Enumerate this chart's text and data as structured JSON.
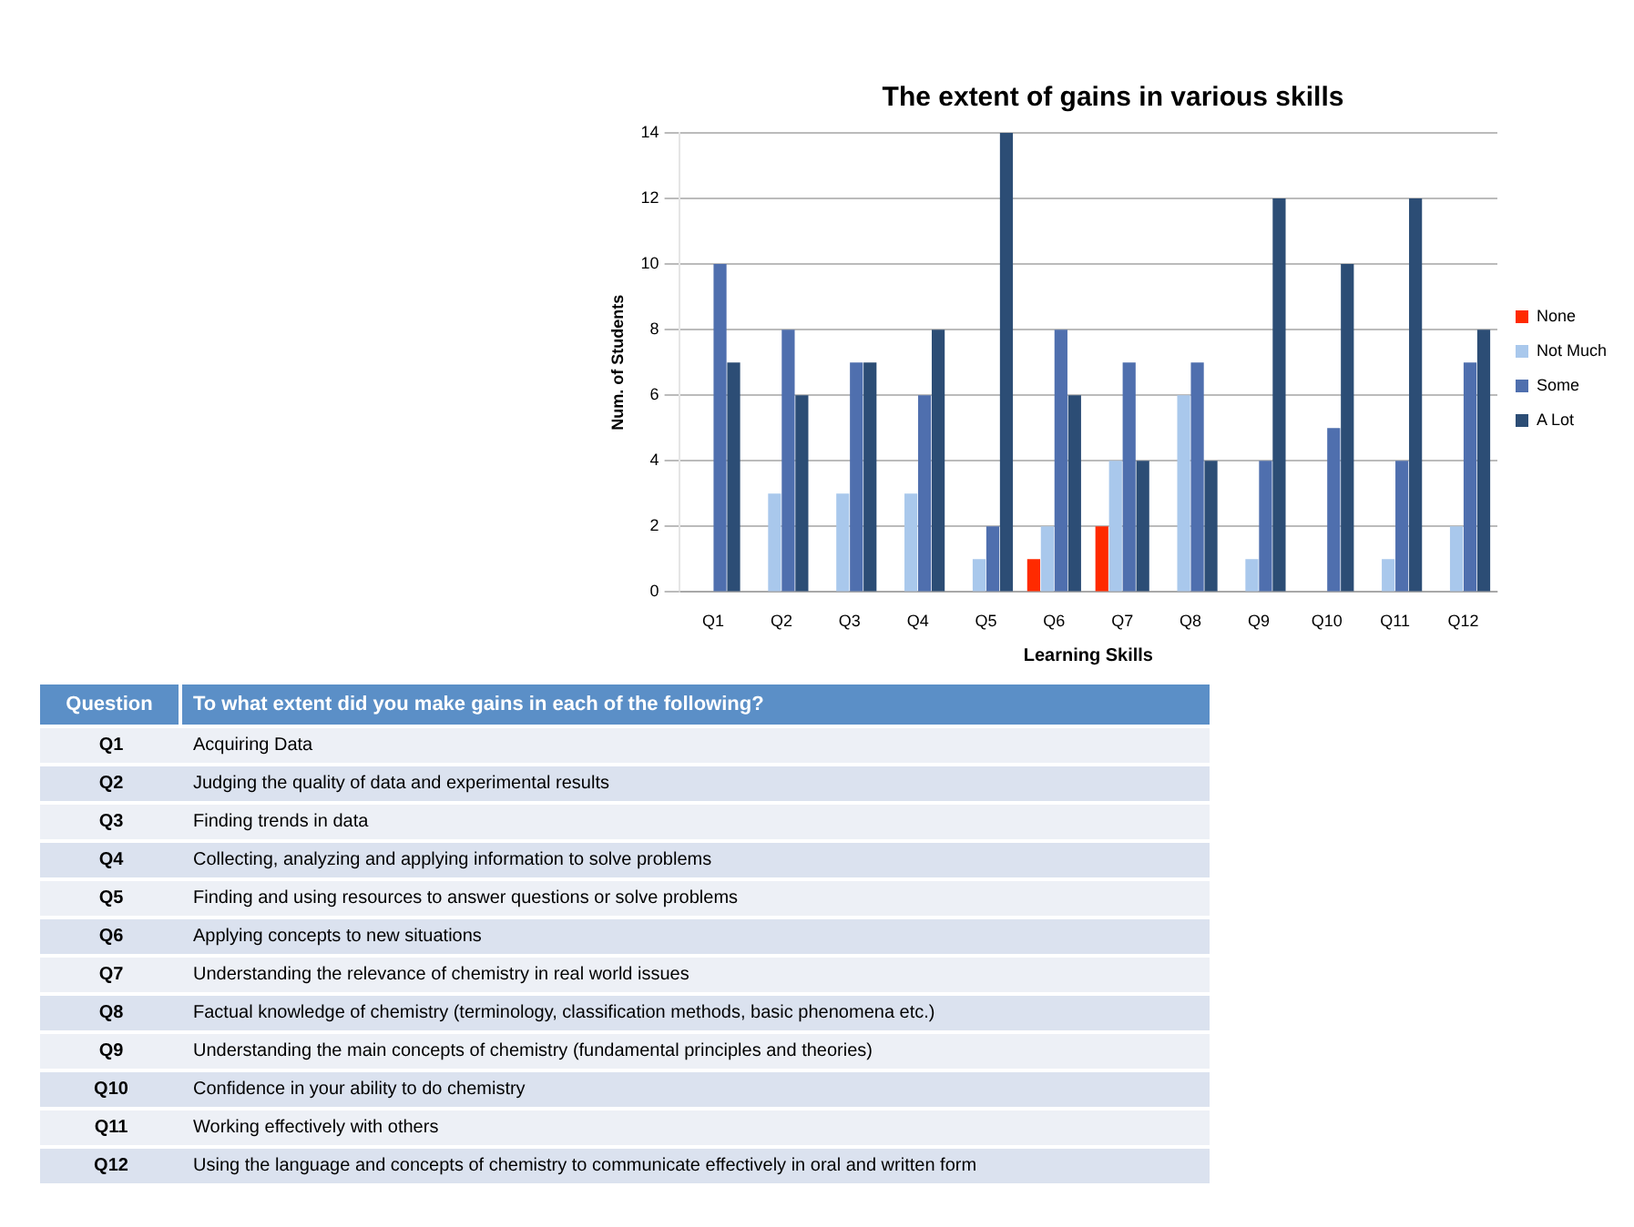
{
  "chart_data": {
    "type": "bar",
    "title": "The extent of gains in various skills",
    "xlabel": "Learning Skills",
    "ylabel": "Num. of Students",
    "categories": [
      "Q1",
      "Q2",
      "Q3",
      "Q4",
      "Q5",
      "Q6",
      "Q7",
      "Q8",
      "Q9",
      "Q10",
      "Q11",
      "Q12"
    ],
    "series": [
      {
        "name": "None",
        "color": "#ff2a00",
        "values": [
          0,
          0,
          0,
          0,
          0,
          1,
          2,
          0,
          0,
          0,
          0,
          0
        ]
      },
      {
        "name": "Not Much",
        "color": "#a9c8ec",
        "values": [
          0,
          3,
          3,
          3,
          1,
          2,
          4,
          6,
          1,
          0,
          1,
          2
        ]
      },
      {
        "name": "Some",
        "color": "#4f6fae",
        "values": [
          10,
          8,
          7,
          6,
          2,
          8,
          7,
          7,
          4,
          5,
          4,
          7
        ]
      },
      {
        "name": "A Lot",
        "color": "#2c4d75",
        "values": [
          7,
          6,
          7,
          8,
          14,
          6,
          4,
          4,
          12,
          10,
          12,
          8
        ]
      }
    ],
    "ylim": [
      0,
      14
    ],
    "yticks": [
      0,
      2,
      4,
      6,
      8,
      10,
      12,
      14
    ],
    "grid": "y",
    "legend": "right",
    "annotations": [
      "Question",
      "To what extent did you make gains in each of the following?",
      "Q1",
      "Acquiring Data",
      "Q2",
      "Judging the quality of data and experimental results",
      "Q3",
      "Finding trends in data",
      "Q4",
      "Collecting, analyzing and applying information to solve problems",
      "Q5",
      "Finding and using resources to answer questions or solve problems",
      "Q6",
      "Applying concepts to new situations",
      "Q7",
      "Understanding the relevance of chemistry in real world issues",
      "Q8",
      "Factual knowledge of chemistry (terminology, classification methods, basic phenomena etc.)",
      "Q9",
      "Understanding the main concepts of chemistry (fundamental principles and theories)",
      "Q10",
      "Confidence in your ability to do chemistry",
      "Q11",
      "Working effectively with others",
      "Q12",
      "Using the language and concepts of chemistry to communicate effectively in oral and written form"
    ]
  }
}
